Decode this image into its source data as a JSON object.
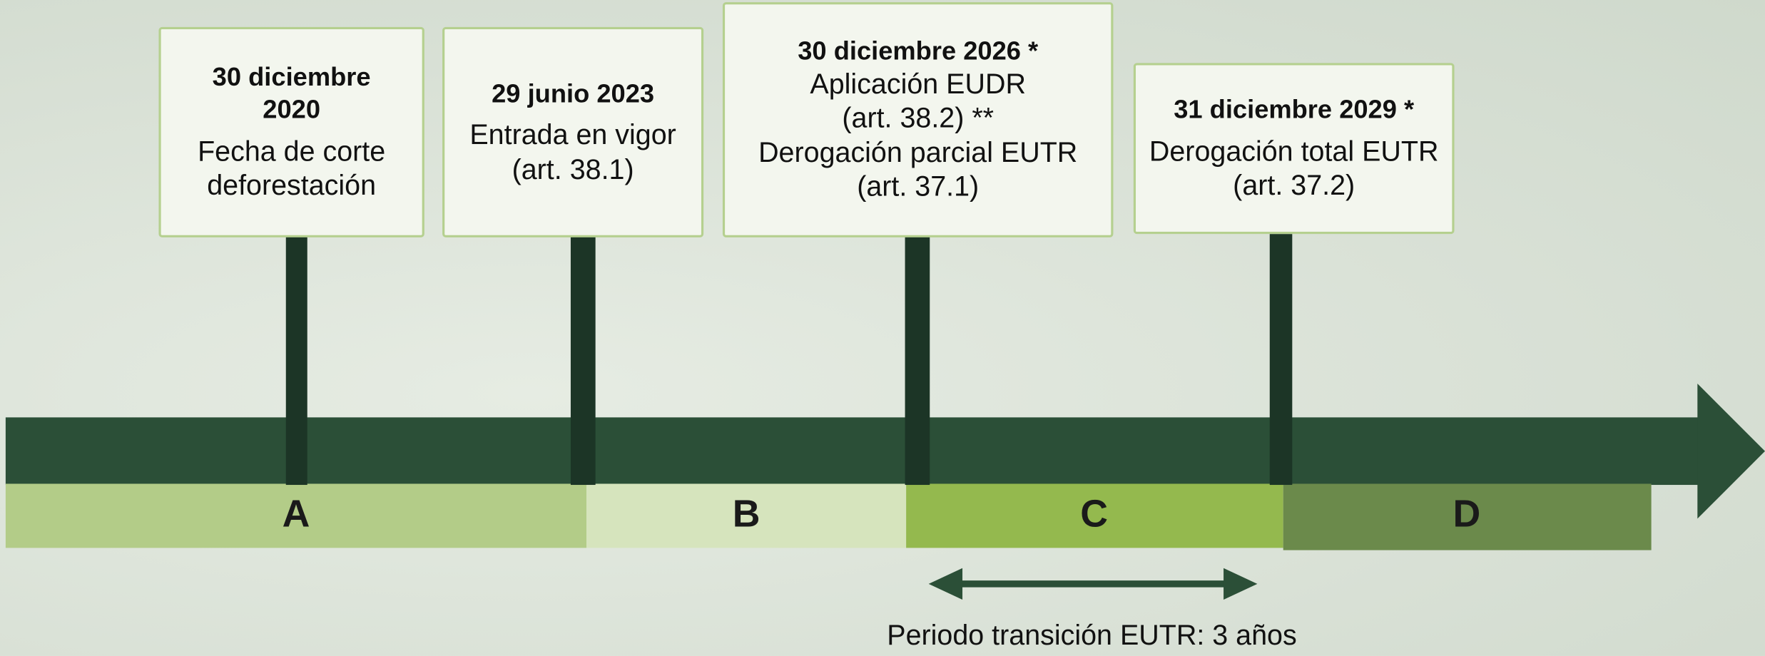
{
  "milestones": [
    {
      "date": "30 diciembre 2020",
      "lines": [
        "Fecha de corte",
        "deforestación"
      ]
    },
    {
      "date": "29 junio 2023",
      "lines": [
        "Entrada en vigor",
        "(art. 38.1)"
      ]
    },
    {
      "date": "30 diciembre 2026 *",
      "lines": [
        "Aplicación EUDR",
        "(art. 38.2) **",
        "Derogación parcial EUTR",
        "(art. 37.1)"
      ]
    },
    {
      "date": "31 diciembre 2029 *",
      "lines": [
        "Derogación total EUTR",
        "(art. 37.2)"
      ]
    }
  ],
  "phases": [
    "A",
    "B",
    "C",
    "D"
  ],
  "transition_note": "Periodo transición EUTR: 3 años"
}
